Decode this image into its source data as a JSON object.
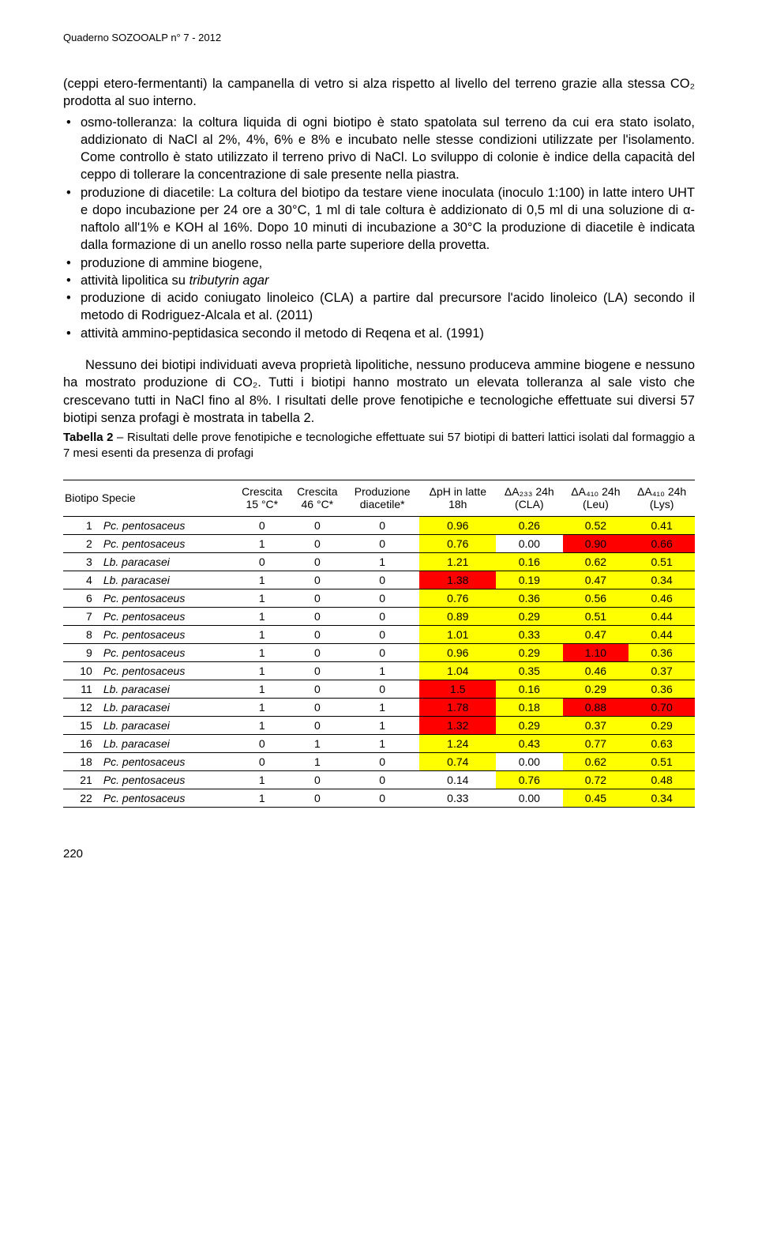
{
  "header": "Quaderno SOZOOALP n° 7 - 2012",
  "intro": "(ceppi etero-fermentanti) la campanella di vetro si alza rispetto al livello del terreno grazie alla stessa CO₂ prodotta al suo interno.",
  "bullets": [
    "osmo-tolleranza: la coltura liquida di ogni biotipo è stato spatolata sul terreno da cui era stato isolato, addizionato di NaCl al 2%, 4%, 6% e 8% e incubato nelle stesse condizioni utilizzate per l'isolamento. Come controllo è stato utilizzato il terreno privo di NaCl. Lo sviluppo di colonie è indice della capacità del ceppo di tollerare la concentrazione di sale presente nella piastra.",
    "produzione di diacetile: La coltura del biotipo da testare viene inoculata (inoculo 1:100) in latte intero UHT e dopo incubazione per 24 ore a 30°C, 1 ml di tale coltura è addizionato di 0,5 ml di una soluzione di α-naftolo all'1% e KOH al 16%. Dopo 10 minuti di incubazione a 30°C la produzione di diacetile è indicata dalla formazione di un anello rosso nella parte superiore della provetta.",
    "produzione di ammine biogene,",
    "attività lipolitica su tributyrin agar",
    "produzione di acido coniugato linoleico (CLA) a partire dal precursore l'acido linoleico (LA) secondo il metodo di Rodriguez-Alcala et al. (2011)",
    "attività ammino-peptidasica secondo il metodo di Reqena et al. (1991)"
  ],
  "bullet3_italic": "tributyrin agar",
  "para2": "Nessuno dei biotipi individuati aveva proprietà lipolitiche, nessuno produceva ammine biogene e nessuno ha mostrato produzione di CO₂. Tutti i biotipi hanno mostrato un elevata tolleranza al sale visto che crescevano tutti in NaCl fino al 8%. I risultati delle prove fenotipiche e tecnologiche effettuate sui diversi 57 biotipi senza profagi è mostrata in tabella 2.",
  "caption_bold": "Tabella 2",
  "caption_rest": " – Risultati delle prove fenotipiche e tecnologiche effettuate sui 57 biotipi di batteri lattici isolati dal formaggio a 7 mesi esenti da presenza di profagi",
  "table": {
    "columns": [
      "Biotipo",
      "Specie",
      "Crescita\n15 °C*",
      "Crescita\n46 °C*",
      "Produzione\ndiacetile*",
      "ΔpH in latte\n18h",
      "ΔA₂₃₃ 24h\n(CLA)",
      "ΔA₄₁₀ 24h\n(Leu)",
      "ΔA₄₁₀ 24h\n(Lys)"
    ],
    "highlight_colors": {
      "yellow": "#ffff00",
      "red": "#ff0000",
      "none": "#ffffff"
    },
    "rows": [
      {
        "b": "1",
        "sp": "Pc. pentosaceus",
        "c15": "0",
        "c46": "0",
        "dia": "0",
        "ph": "0.96",
        "phc": "yellow",
        "cla": "0.26",
        "clac": "yellow",
        "leu": "0.52",
        "leuc": "yellow",
        "lys": "0.41",
        "lysc": "yellow"
      },
      {
        "b": "2",
        "sp": "Pc. pentosaceus",
        "c15": "1",
        "c46": "0",
        "dia": "0",
        "ph": "0.76",
        "phc": "yellow",
        "cla": "0.00",
        "clac": "none",
        "leu": "0.90",
        "leuc": "red",
        "lys": "0.66",
        "lysc": "red"
      },
      {
        "b": "3",
        "sp": "Lb. paracasei",
        "c15": "0",
        "c46": "0",
        "dia": "1",
        "ph": "1.21",
        "phc": "yellow",
        "cla": "0.16",
        "clac": "yellow",
        "leu": "0.62",
        "leuc": "yellow",
        "lys": "0.51",
        "lysc": "yellow"
      },
      {
        "b": "4",
        "sp": "Lb. paracasei",
        "c15": "1",
        "c46": "0",
        "dia": "0",
        "ph": "1.38",
        "phc": "red",
        "cla": "0.19",
        "clac": "yellow",
        "leu": "0.47",
        "leuc": "yellow",
        "lys": "0.34",
        "lysc": "yellow"
      },
      {
        "b": "6",
        "sp": "Pc. pentosaceus",
        "c15": "1",
        "c46": "0",
        "dia": "0",
        "ph": "0.76",
        "phc": "yellow",
        "cla": "0.36",
        "clac": "yellow",
        "leu": "0.56",
        "leuc": "yellow",
        "lys": "0.46",
        "lysc": "yellow"
      },
      {
        "b": "7",
        "sp": "Pc. pentosaceus",
        "c15": "1",
        "c46": "0",
        "dia": "0",
        "ph": "0.89",
        "phc": "yellow",
        "cla": "0.29",
        "clac": "yellow",
        "leu": "0.51",
        "leuc": "yellow",
        "lys": "0.44",
        "lysc": "yellow"
      },
      {
        "b": "8",
        "sp": "Pc. pentosaceus",
        "c15": "1",
        "c46": "0",
        "dia": "0",
        "ph": "1.01",
        "phc": "yellow",
        "cla": "0.33",
        "clac": "yellow",
        "leu": "0.47",
        "leuc": "yellow",
        "lys": "0.44",
        "lysc": "yellow"
      },
      {
        "b": "9",
        "sp": "Pc. pentosaceus",
        "c15": "1",
        "c46": "0",
        "dia": "0",
        "ph": "0.96",
        "phc": "yellow",
        "cla": "0.29",
        "clac": "yellow",
        "leu": "1.10",
        "leuc": "red",
        "lys": "0.36",
        "lysc": "yellow"
      },
      {
        "b": "10",
        "sp": "Pc. pentosaceus",
        "c15": "1",
        "c46": "0",
        "dia": "1",
        "ph": "1.04",
        "phc": "yellow",
        "cla": "0.35",
        "clac": "yellow",
        "leu": "0.46",
        "leuc": "yellow",
        "lys": "0.37",
        "lysc": "yellow"
      },
      {
        "b": "11",
        "sp": "Lb. paracasei",
        "c15": "1",
        "c46": "0",
        "dia": "0",
        "ph": "1.5",
        "phc": "red",
        "cla": "0.16",
        "clac": "yellow",
        "leu": "0.29",
        "leuc": "yellow",
        "lys": "0.36",
        "lysc": "yellow"
      },
      {
        "b": "12",
        "sp": "Lb. paracasei",
        "c15": "1",
        "c46": "0",
        "dia": "1",
        "ph": "1.78",
        "phc": "red",
        "cla": "0.18",
        "clac": "yellow",
        "leu": "0.88",
        "leuc": "red",
        "lys": "0.70",
        "lysc": "red"
      },
      {
        "b": "15",
        "sp": "Lb. paracasei",
        "c15": "1",
        "c46": "0",
        "dia": "1",
        "ph": "1.32",
        "phc": "red",
        "cla": "0.29",
        "clac": "yellow",
        "leu": "0.37",
        "leuc": "yellow",
        "lys": "0.29",
        "lysc": "yellow"
      },
      {
        "b": "16",
        "sp": "Lb. paracasei",
        "c15": "0",
        "c46": "1",
        "dia": "1",
        "ph": "1.24",
        "phc": "yellow",
        "cla": "0.43",
        "clac": "yellow",
        "leu": "0.77",
        "leuc": "yellow",
        "lys": "0.63",
        "lysc": "yellow"
      },
      {
        "b": "18",
        "sp": "Pc. pentosaceus",
        "c15": "0",
        "c46": "1",
        "dia": "0",
        "ph": "0.74",
        "phc": "yellow",
        "cla": "0.00",
        "clac": "none",
        "leu": "0.62",
        "leuc": "yellow",
        "lys": "0.51",
        "lysc": "yellow"
      },
      {
        "b": "21",
        "sp": "Pc. pentosaceus",
        "c15": "1",
        "c46": "0",
        "dia": "0",
        "ph": "0.14",
        "phc": "none",
        "cla": "0.76",
        "clac": "yellow",
        "leu": "0.72",
        "leuc": "yellow",
        "lys": "0.48",
        "lysc": "yellow"
      },
      {
        "b": "22",
        "sp": "Pc. pentosaceus",
        "c15": "1",
        "c46": "0",
        "dia": "0",
        "ph": "0.33",
        "phc": "none",
        "cla": "0.00",
        "clac": "none",
        "leu": "0.45",
        "leuc": "yellow",
        "lys": "0.34",
        "lysc": "yellow"
      }
    ]
  },
  "page_num": "220"
}
